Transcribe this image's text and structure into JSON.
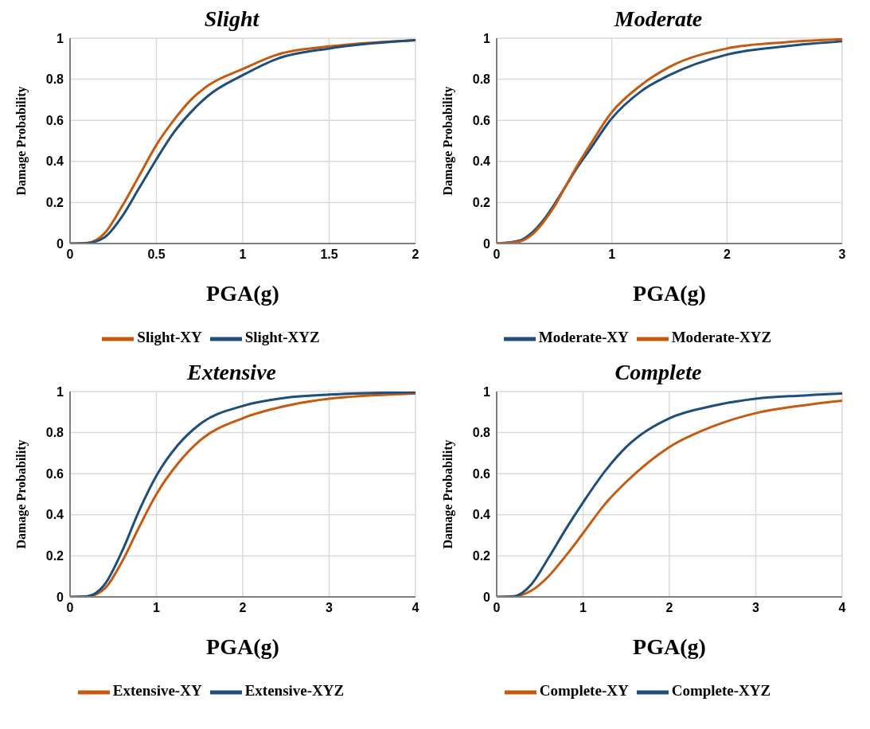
{
  "chart_data": [
    {
      "type": "line",
      "title": "Slight",
      "xlabel": "PGA(g)",
      "ylabel": "Damage Probability",
      "xlim": [
        0,
        2
      ],
      "xticks": [
        0,
        0.5,
        1,
        1.5,
        2
      ],
      "ylim": [
        0,
        1
      ],
      "yticks": [
        0,
        0.2,
        0.4,
        0.6,
        0.8,
        1
      ],
      "grid": true,
      "legend": "bottom",
      "marker": "none",
      "line_style": "solid",
      "series": [
        {
          "name": "Slight-XY",
          "color": "#c55a11",
          "x": [
            0,
            0.1,
            0.2,
            0.3,
            0.4,
            0.5,
            0.6,
            0.7,
            0.8,
            1.0,
            1.2,
            1.5,
            2
          ],
          "values": [
            0,
            0.003,
            0.05,
            0.18,
            0.33,
            0.48,
            0.6,
            0.7,
            0.77,
            0.85,
            0.92,
            0.96,
            0.99
          ]
        },
        {
          "name": "Slight-XYZ",
          "color": "#1f4e79",
          "x": [
            0,
            0.1,
            0.2,
            0.3,
            0.4,
            0.5,
            0.6,
            0.7,
            0.8,
            1.0,
            1.2,
            1.5,
            2
          ],
          "values": [
            0,
            0.002,
            0.03,
            0.13,
            0.27,
            0.41,
            0.54,
            0.64,
            0.72,
            0.82,
            0.9,
            0.95,
            0.99
          ]
        }
      ]
    },
    {
      "type": "line",
      "title": "Moderate",
      "xlabel": "PGA(g)",
      "ylabel": "Damage Probability",
      "xlim": [
        0,
        3
      ],
      "xticks": [
        0,
        1,
        2,
        3
      ],
      "ylim": [
        0,
        1
      ],
      "yticks": [
        0,
        0.2,
        0.4,
        0.6,
        0.8,
        1
      ],
      "grid": true,
      "legend": "bottom",
      "marker": "none",
      "line_style": "solid",
      "series": [
        {
          "name": "Moderate-XY",
          "color": "#1f4e79",
          "x": [
            0,
            0.2,
            0.3,
            0.4,
            0.5,
            0.6,
            0.7,
            0.8,
            1.0,
            1.25,
            1.5,
            2,
            2.5,
            3
          ],
          "values": [
            0,
            0.015,
            0.05,
            0.11,
            0.19,
            0.28,
            0.37,
            0.45,
            0.61,
            0.74,
            0.82,
            0.92,
            0.96,
            0.985
          ]
        },
        {
          "name": "Moderate-XYZ",
          "color": "#c55a11",
          "x": [
            0,
            0.2,
            0.3,
            0.4,
            0.5,
            0.6,
            0.7,
            0.8,
            1.0,
            1.25,
            1.5,
            2,
            2.5,
            3
          ],
          "values": [
            0,
            0.01,
            0.04,
            0.1,
            0.18,
            0.28,
            0.38,
            0.47,
            0.64,
            0.77,
            0.86,
            0.95,
            0.98,
            0.995
          ]
        }
      ]
    },
    {
      "type": "line",
      "title": "Extensive",
      "xlabel": "PGA(g)",
      "ylabel": "Damage Probability",
      "xlim": [
        0,
        4
      ],
      "xticks": [
        0,
        1,
        2,
        3,
        4
      ],
      "ylim": [
        0,
        1
      ],
      "yticks": [
        0,
        0.2,
        0.4,
        0.6,
        0.8,
        1
      ],
      "grid": true,
      "legend": "bottom",
      "marker": "none",
      "line_style": "solid",
      "series": [
        {
          "name": "Extensive-XY",
          "color": "#c55a11",
          "x": [
            0,
            0.2,
            0.4,
            0.6,
            0.8,
            1.0,
            1.25,
            1.5,
            2,
            2.5,
            3,
            4
          ],
          "values": [
            0,
            0.002,
            0.04,
            0.17,
            0.34,
            0.5,
            0.65,
            0.76,
            0.87,
            0.93,
            0.965,
            0.99
          ]
        },
        {
          "name": "Extensive-XYZ",
          "color": "#1f4e79",
          "x": [
            0,
            0.2,
            0.4,
            0.6,
            0.8,
            1.0,
            1.25,
            1.5,
            2,
            2.5,
            3,
            4
          ],
          "values": [
            0,
            0.003,
            0.06,
            0.22,
            0.42,
            0.59,
            0.74,
            0.84,
            0.93,
            0.97,
            0.985,
            0.997
          ]
        }
      ]
    },
    {
      "type": "line",
      "title": "Complete",
      "xlabel": "PGA(g)",
      "ylabel": "Damage Probability",
      "xlim": [
        0,
        4
      ],
      "xticks": [
        0,
        1,
        2,
        3,
        4
      ],
      "ylim": [
        0,
        1
      ],
      "yticks": [
        0,
        0.2,
        0.4,
        0.6,
        0.8,
        1
      ],
      "grid": true,
      "legend": "bottom",
      "marker": "none",
      "line_style": "solid",
      "series": [
        {
          "name": "Complete-XY",
          "color": "#c55a11",
          "x": [
            0,
            0.2,
            0.4,
            0.6,
            0.8,
            1.0,
            1.25,
            1.5,
            2,
            2.5,
            3,
            3.5,
            4
          ],
          "values": [
            0,
            0.002,
            0.03,
            0.1,
            0.2,
            0.31,
            0.45,
            0.56,
            0.73,
            0.83,
            0.895,
            0.93,
            0.955
          ]
        },
        {
          "name": "Complete-XYZ",
          "color": "#1f4e79",
          "x": [
            0,
            0.2,
            0.4,
            0.6,
            0.8,
            1.0,
            1.25,
            1.5,
            2,
            2.5,
            3,
            3.5,
            4
          ],
          "values": [
            0,
            0.003,
            0.06,
            0.19,
            0.33,
            0.46,
            0.61,
            0.73,
            0.87,
            0.93,
            0.965,
            0.98,
            0.99
          ]
        }
      ]
    }
  ]
}
